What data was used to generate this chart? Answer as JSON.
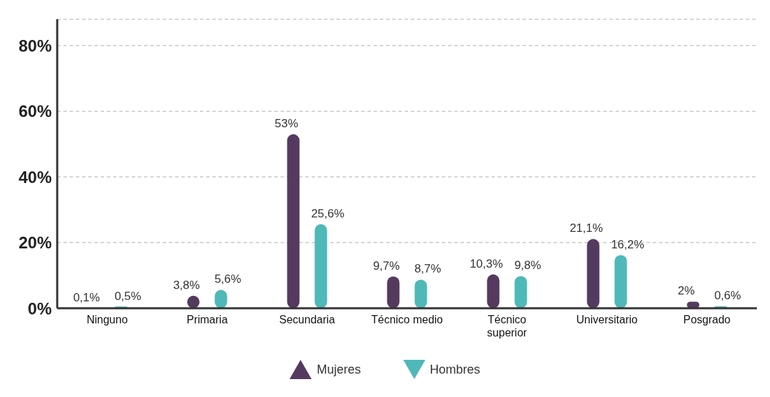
{
  "chart_data": {
    "type": "bar",
    "categories": [
      "Ninguno",
      "Primaria",
      "Secundaria",
      "Técnico medio",
      "Técnico superior",
      "Universitario",
      "Posgrado"
    ],
    "series": [
      {
        "name": "Mujeres",
        "color": "#553a5f",
        "values": [
          0.1,
          3.8,
          53,
          9.7,
          10.3,
          21.1,
          2
        ],
        "value_labels": [
          "0,1%",
          "3,8%",
          "53%",
          "9,7%",
          "10,3%",
          "21,1%",
          "2%"
        ]
      },
      {
        "name": "Hombres",
        "color": "#4fb8b8",
        "values": [
          0.5,
          5.6,
          25.6,
          8.7,
          9.8,
          16.2,
          0.6
        ],
        "value_labels": [
          "0,5%",
          "5,6%",
          "25,6%",
          "8,7%",
          "9,8%",
          "16,2%",
          "0,6%"
        ]
      }
    ],
    "ylim": [
      0,
      88
    ],
    "yticks": [
      {
        "value": 0,
        "label": "0%"
      },
      {
        "value": 20,
        "label": "20%"
      },
      {
        "value": 40,
        "label": "40%"
      },
      {
        "value": 60,
        "label": "60%"
      },
      {
        "value": 80,
        "label": "80%"
      }
    ],
    "grid": "y",
    "legend": "bottom"
  }
}
